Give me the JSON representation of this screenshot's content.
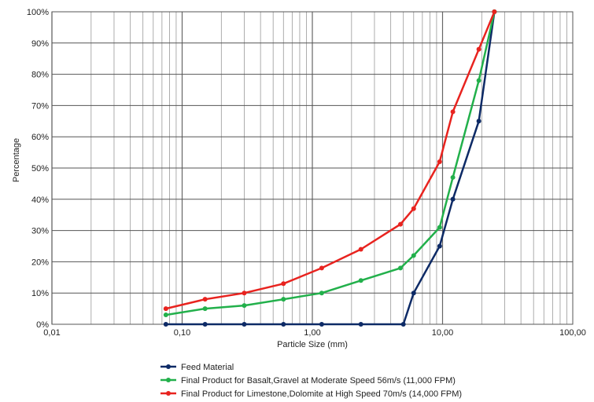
{
  "chart_data": {
    "type": "line",
    "xscale": "log",
    "xlim": [
      0.01,
      100
    ],
    "ylim": [
      0,
      100
    ],
    "grid": true,
    "legend_position": "bottom",
    "title": "",
    "xlabel": "Particle Size (mm)",
    "ylabel": "Percentage",
    "x_tick_labels": [
      "0,01",
      "0,10",
      "1,00",
      "10,00",
      "100,00"
    ],
    "x_tick_values": [
      0.01,
      0.1,
      1,
      10,
      100
    ],
    "y_tick_labels": [
      "0%",
      "10%",
      "20%",
      "30%",
      "40%",
      "50%",
      "60%",
      "70%",
      "80%",
      "90%",
      "100%"
    ],
    "y_tick_values": [
      0,
      10,
      20,
      30,
      40,
      50,
      60,
      70,
      80,
      90,
      100
    ],
    "series": [
      {
        "name": "Feed Material",
        "color": "#0d2a66",
        "x": [
          0.075,
          0.15,
          0.3,
          0.6,
          1.18,
          2.36,
          5.0,
          6.0,
          9.5,
          12.0,
          19.0,
          25.0
        ],
        "y": [
          0,
          0,
          0,
          0,
          0,
          0,
          0,
          10,
          25,
          40,
          65,
          100
        ]
      },
      {
        "name": "Final Product for Basalt,Gravel at Moderate Speed 56m/s (11,000 FPM)",
        "color": "#22b04b",
        "x": [
          0.075,
          0.15,
          0.3,
          0.6,
          1.18,
          2.36,
          4.75,
          6.0,
          9.5,
          12.0,
          19.0,
          25.0
        ],
        "y": [
          3,
          5,
          6,
          8,
          10,
          14,
          18,
          22,
          31,
          47,
          78,
          100
        ]
      },
      {
        "name": "Final Product for Limestone,Dolomite at High Speed 70m/s (14,000 FPM)",
        "color": "#e8231f",
        "x": [
          0.075,
          0.15,
          0.3,
          0.6,
          1.18,
          2.36,
          4.75,
          6.0,
          9.5,
          12.0,
          19.0,
          25.0
        ],
        "y": [
          5,
          8,
          10,
          13,
          18,
          24,
          32,
          37,
          52,
          68,
          88,
          100
        ]
      }
    ]
  }
}
